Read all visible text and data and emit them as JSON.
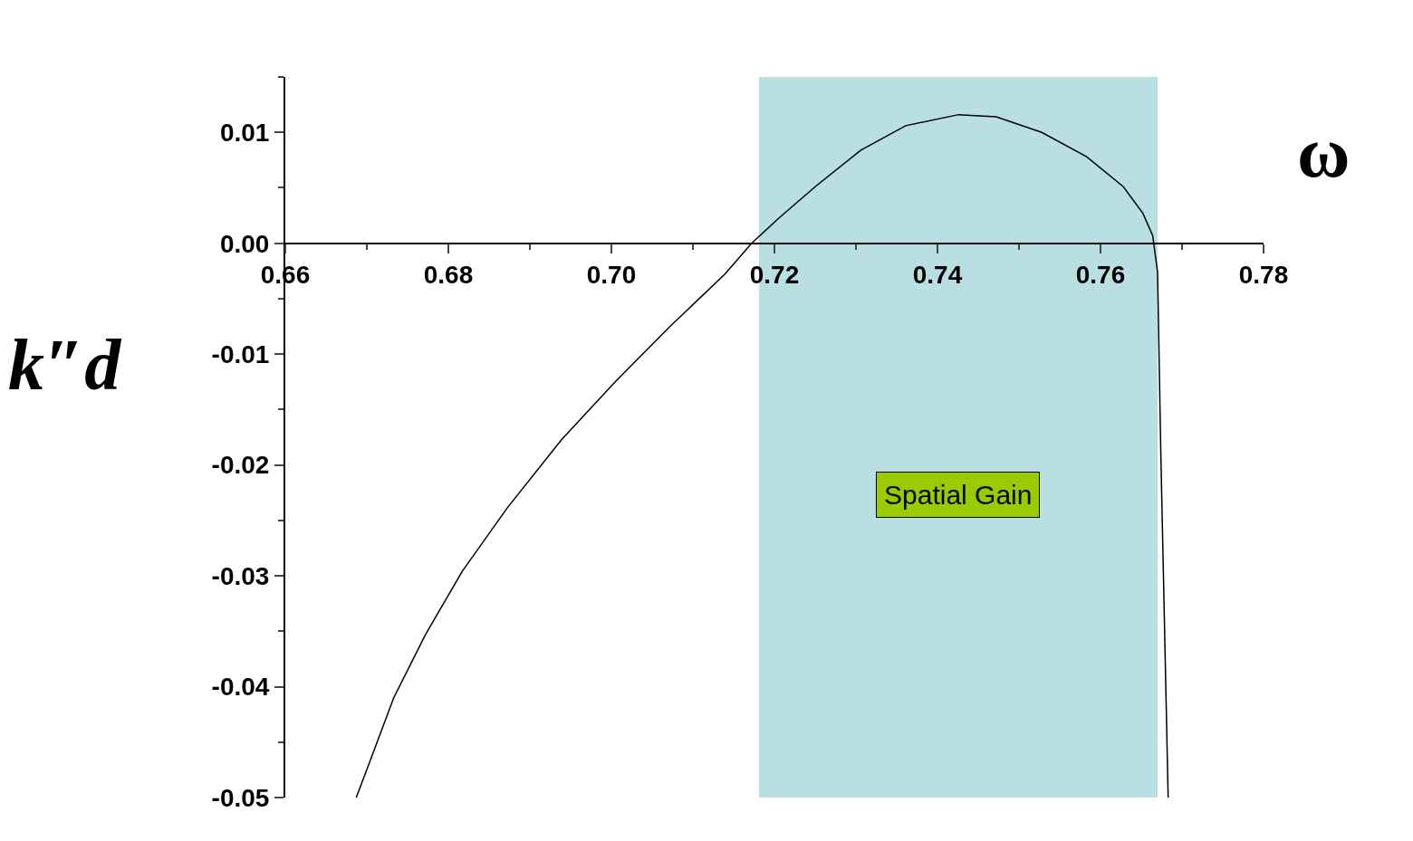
{
  "chart_data": {
    "type": "line",
    "xlabel": "ω",
    "ylabel": "k″d",
    "x": [
      0.6687,
      0.6706,
      0.6733,
      0.6772,
      0.6817,
      0.6872,
      0.6939,
      0.7006,
      0.7072,
      0.7139,
      0.7172,
      0.7206,
      0.725,
      0.7306,
      0.7361,
      0.7426,
      0.7472,
      0.7528,
      0.7583,
      0.7628,
      0.7652,
      0.7664,
      0.767,
      0.7674,
      0.7683
    ],
    "series": [
      {
        "color": "#000000",
        "values": [
          -0.05,
          -0.0463,
          -0.041,
          -0.0353,
          -0.0296,
          -0.0239,
          -0.0177,
          -0.0124,
          -0.0075,
          -0.0028,
          0,
          0.0023,
          0.0051,
          0.0084,
          0.0106,
          0.0116,
          0.0114,
          0.01,
          0.0078,
          0.0051,
          0.0027,
          0.0007,
          -0.0026,
          -0.019,
          -0.05
        ]
      }
    ],
    "xlim": [
      0.66,
      0.78
    ],
    "ylim": [
      -0.05,
      0.015
    ],
    "xticks": [
      {
        "value": 0.66,
        "label": "0.66"
      },
      {
        "value": 0.68,
        "label": "0.68"
      },
      {
        "value": 0.7,
        "label": "0.70"
      },
      {
        "value": 0.72,
        "label": "0.72"
      },
      {
        "value": 0.74,
        "label": "0.74"
      },
      {
        "value": 0.76,
        "label": "0.76"
      },
      {
        "value": 0.78,
        "label": "0.78"
      }
    ],
    "yticks": [
      {
        "value": 0.01,
        "label": "0.01"
      },
      {
        "value": 0,
        "label": "0.00"
      },
      {
        "value": -0.01,
        "label": "-0.01"
      },
      {
        "value": -0.02,
        "label": "-0.02"
      },
      {
        "value": -0.03,
        "label": "-0.03"
      },
      {
        "value": -0.04,
        "label": "-0.04"
      },
      {
        "value": -0.05,
        "label": "-0.05"
      }
    ],
    "bands": [
      {
        "axis": "x",
        "from": 0.7181,
        "to": 0.767,
        "color": "#b9dfe2",
        "label": "Spatial Gain"
      }
    ],
    "line_style": "solid"
  }
}
